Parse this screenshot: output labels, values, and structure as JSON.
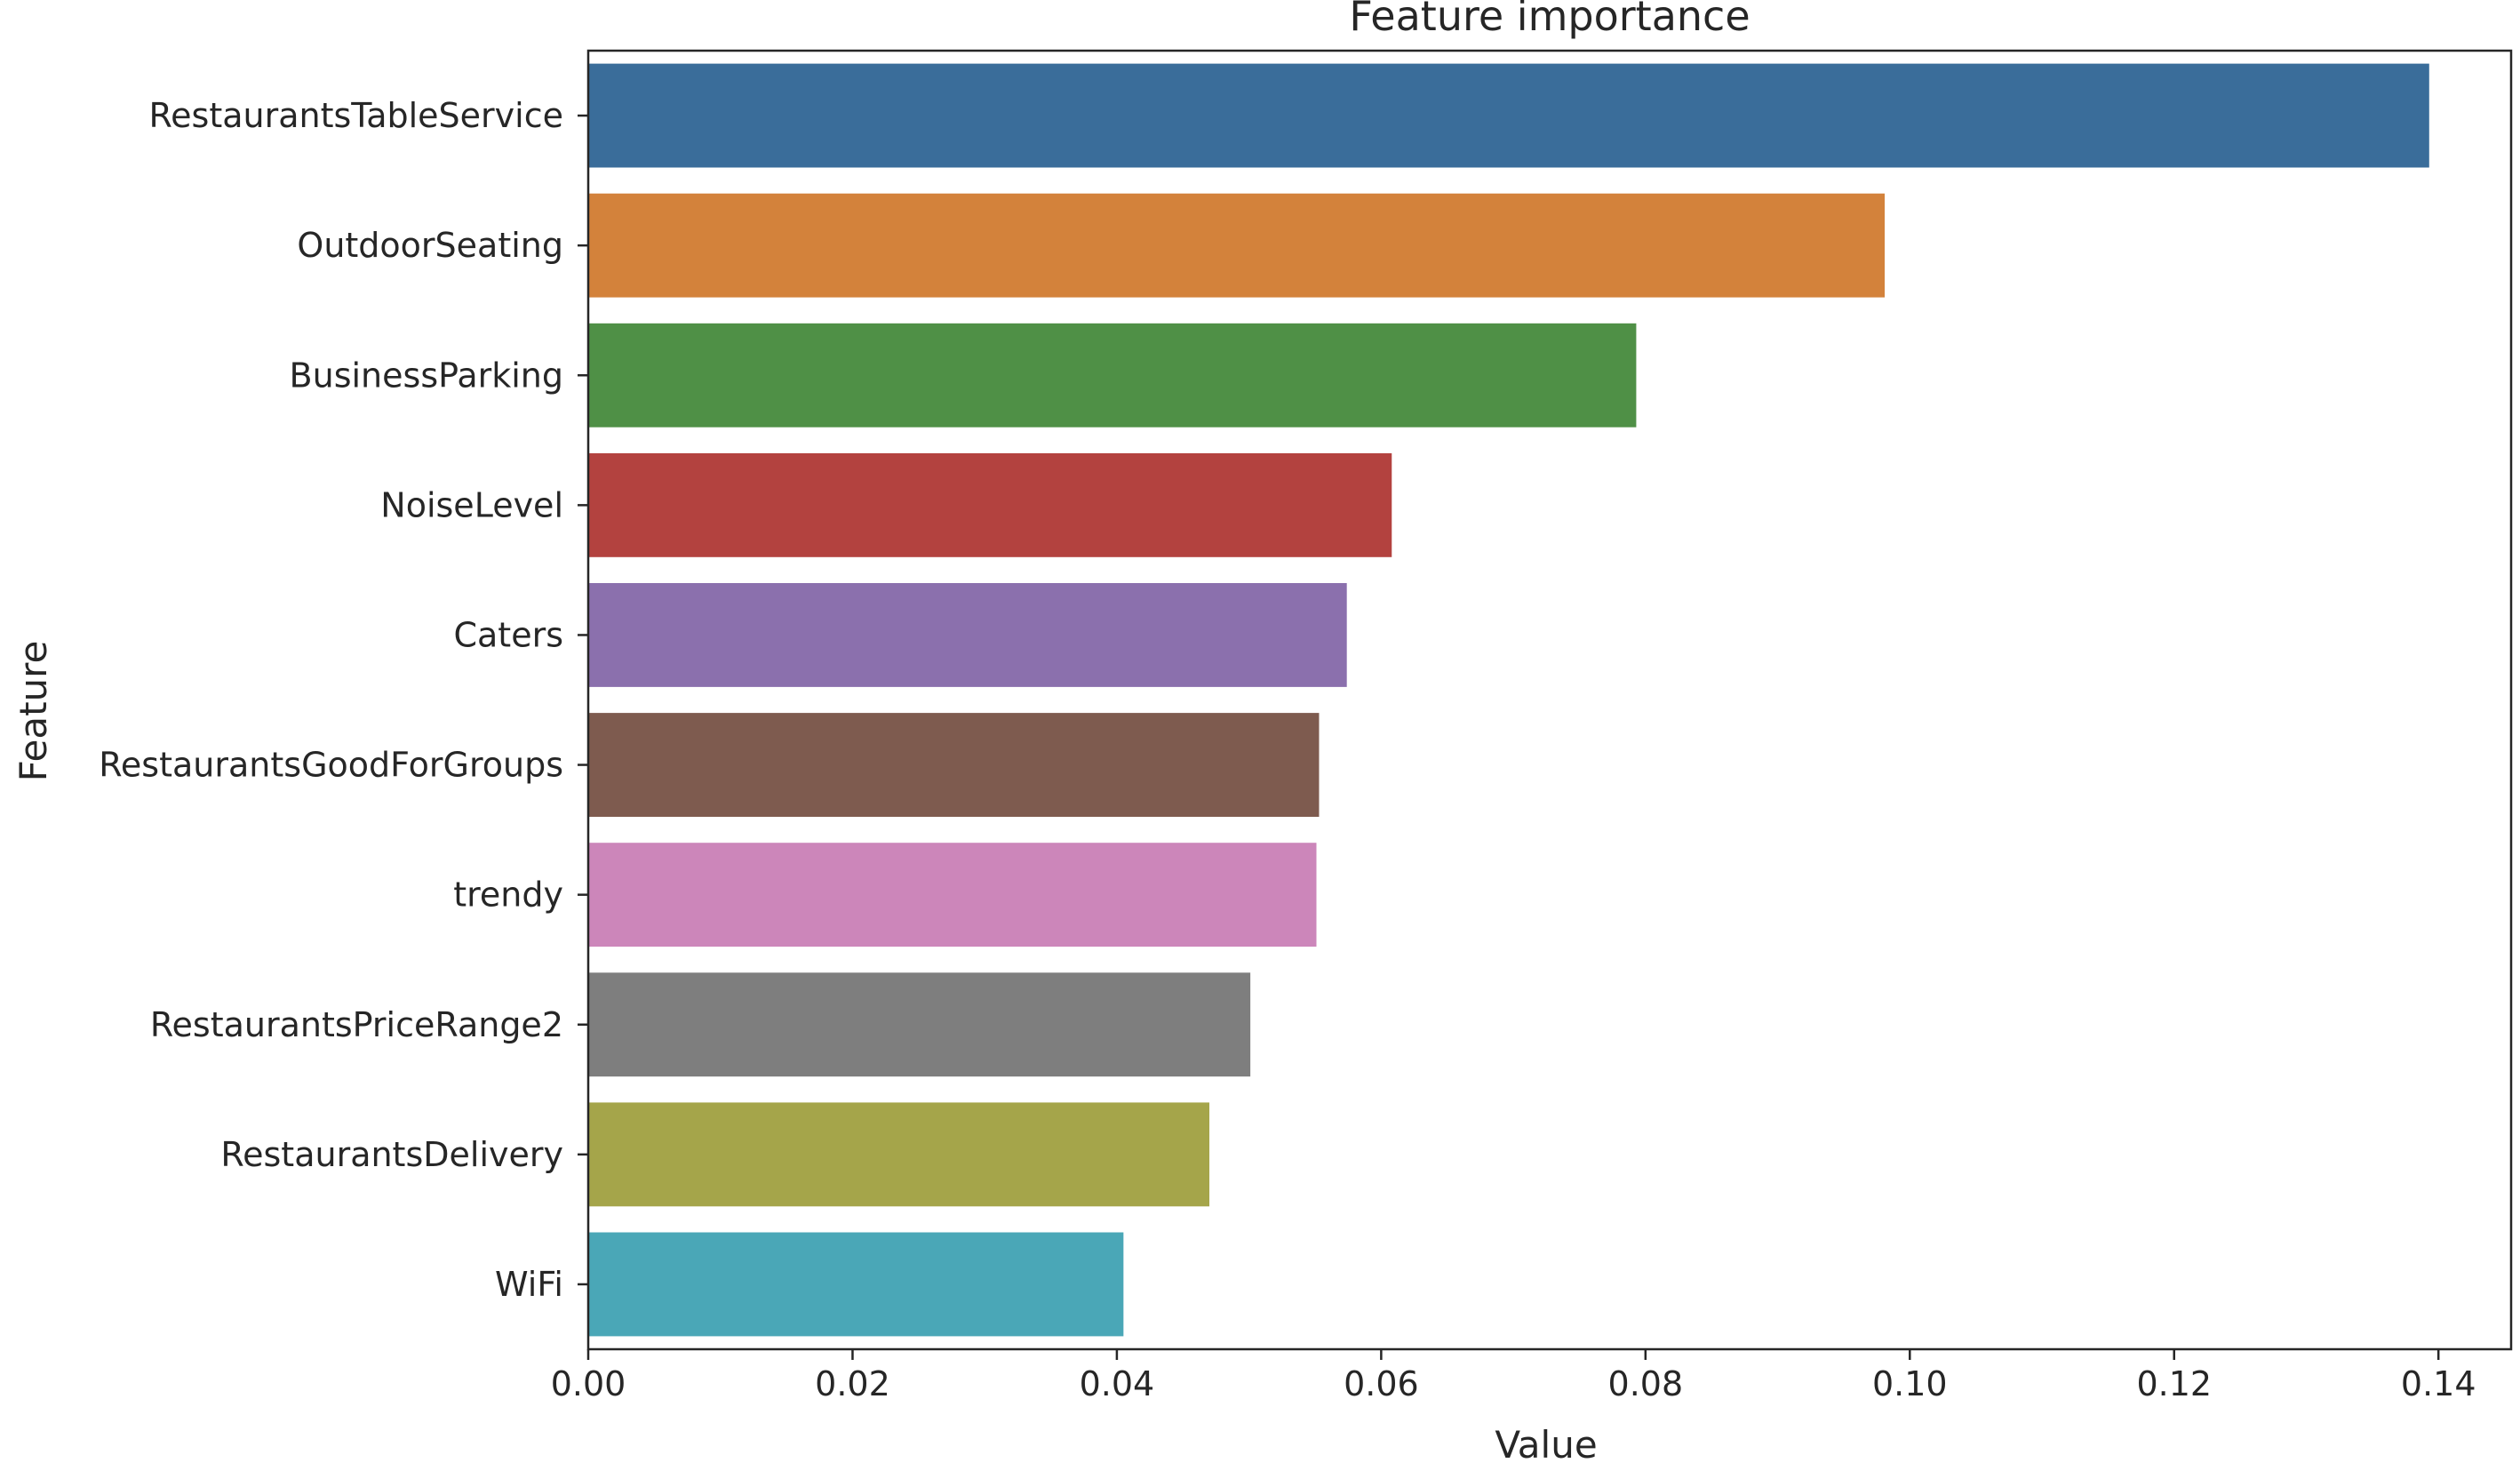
{
  "chart_data": {
    "type": "bar",
    "orientation": "horizontal",
    "title": "Feature importance",
    "xlabel": "Value",
    "ylabel": "Feature",
    "xlim": [
      0,
      0.1455
    ],
    "xticks": [
      "0.00",
      "0.02",
      "0.04",
      "0.06",
      "0.08",
      "0.10",
      "0.12",
      "0.14"
    ],
    "grid": false,
    "categories": [
      "RestaurantsTableService",
      "OutdoorSeating",
      "BusinessParking",
      "NoiseLevel",
      "Caters",
      "RestaurantsGoodForGroups",
      "trendy",
      "RestaurantsPriceRange2",
      "RestaurantsDelivery",
      "WiFi"
    ],
    "values": [
      0.1393,
      0.0981,
      0.0793,
      0.0608,
      0.0574,
      0.0553,
      0.0551,
      0.0501,
      0.047,
      0.0405
    ],
    "colors": [
      "#3a6d9a",
      "#d3823b",
      "#4f9046",
      "#b3423f",
      "#8b70ad",
      "#7e5b4f",
      "#cc86ba",
      "#7e7e7e",
      "#a5a54a",
      "#4aa7b7"
    ]
  }
}
